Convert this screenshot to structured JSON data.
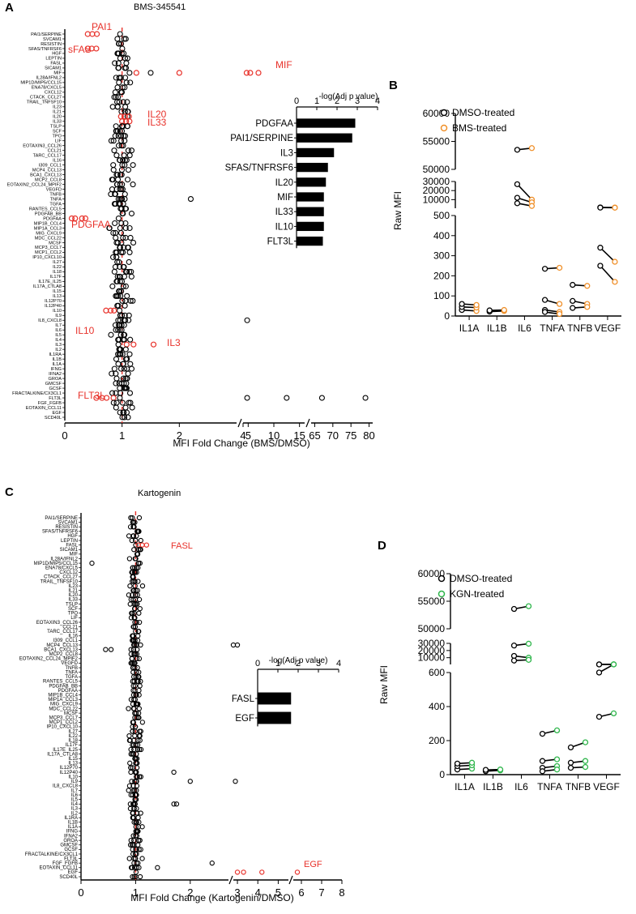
{
  "panel_labels": {
    "a": "A",
    "b": "B",
    "c": "C",
    "d": "D"
  },
  "labels_a": [
    "PAI1/SERPINE",
    "SVCAM1",
    "RESISTIN",
    "SFAS/TNFRSF6",
    "HGF",
    "LEPTIN",
    "FASL",
    "SICAM1",
    "MIF",
    "IL28A/IFNL2",
    "MIP1D/MIP5/CCL15",
    "ENA78/CXCL5",
    "CXCL12",
    "CTACK_CCL27",
    "TRAIL_TNFSF10",
    "IL23",
    "IL21",
    "IL20",
    "IL33",
    "TSLP",
    "SCF",
    "TPO",
    "LIF",
    "EOTAXIN3_CCL26",
    "CCL21",
    "TARC_CCL17",
    "IL16",
    "I309_CCL1",
    "MCP4_CCL13",
    "BCA1_CXCL13",
    "MCP2_CCL8",
    "EOTAXIN2_CCL24_MPIF2",
    "VEGFD",
    "TNFB",
    "TNFA",
    "TGFA",
    "RANTES_CCL5",
    "PDGFAB_BB",
    "PDGFAA",
    "MIP1B_CCL4",
    "MIP1A_CCL3",
    "MIG_CXCL9",
    "MDC_CCL22",
    "MCSF",
    "MCP3_CCL7",
    "MCP1_CCL2",
    "IP10_CXCL10",
    "IL27",
    "IL22",
    "IL18",
    "IL17F",
    "IL17E_IL25",
    "IL17A_CTLA8",
    "IL15",
    "IL13",
    "IL12P70",
    "IL12P40",
    "IL10",
    "IL9",
    "IL8_CXCL8",
    "IL7",
    "IL6",
    "IL5",
    "IL4",
    "IL3",
    "IL2",
    "IL1RA",
    "IL1B",
    "IL1A",
    "IFNG",
    "IFNA2",
    "GROA",
    "GMCSF",
    "GCSF",
    "FRACTALKINE/CX3CL1",
    "FLT3L",
    "FGF_FGFB",
    "EOTAXIN_CCL11",
    "EGF",
    "SCD40L"
  ],
  "labels_c": [
    "PAI1/SERPINE",
    "SVCAM1",
    "RESISTIN",
    "SFAS/TNFRSF6",
    "HGF",
    "LEPTIN",
    "FASL",
    "SICAM1",
    "MIF",
    "IL28A/IFNL2",
    "MIP1D/MIP5/CCL15",
    "ENA78/CXCL5",
    "CXCL12",
    "CTACK_CCL27",
    "TRAIL_TNFSF10",
    "IL23",
    "IL21",
    "IL20",
    "IL33",
    "TSLP",
    "SCF",
    "TPO",
    "LIF",
    "EOTAXIN3_CCL26",
    "CCL21",
    "TARC_CCL17",
    "IL16",
    "I309_CCL1",
    "MCP4_CCL13",
    "BCA1_CXCL13",
    "MCP2_CCL8",
    "EOTAXIN2_CCL24_MPIF2",
    "VEGFD",
    "TNFB",
    "TNFA",
    "TGFA",
    "RANTES_CCL5",
    "PDGFAB_BB",
    "PDGFAA",
    "MIP1B_CCL4",
    "MIP1A_CCL3",
    "MIG_CXCL9",
    "MDC_CCL22",
    "MCSF",
    "MCP3_CCL7",
    "MCP1_CCL2",
    "IP10_CXCL10",
    "IL27",
    "IL22",
    "IL18",
    "IL17F",
    "IL17E_IL25",
    "IL17A_CTLA8",
    "IL15",
    "IL13",
    "IL12P70",
    "IL12P40",
    "IL10",
    "IL9",
    "IL8_CXCL8",
    "IL7",
    "IL6",
    "IL5",
    "IL4",
    "IL3",
    "IL2",
    "IL1RA",
    "IL1B",
    "IL1A",
    "IFNG",
    "IFNA2",
    "GROA",
    "GMCSF",
    "GCSF",
    "FRACTALKINE/CX3CL1",
    "FLT3L",
    "FGF_FGFB",
    "EOTAXIN_CCL11",
    "EGF",
    "SCD40L"
  ],
  "chart_data": [
    {
      "id": "a",
      "type": "scatter",
      "title": "BMS-345541",
      "xlabel": "MFI Fold Change (BMS/DMSO)",
      "xticks": [
        "0",
        "1",
        "2",
        "4",
        "5",
        "10",
        "15",
        "65",
        "70",
        "75",
        "80"
      ],
      "x_segments": [
        [
          0,
          3
        ],
        [
          4,
          16
        ],
        [
          64,
          81
        ]
      ],
      "reference_x": 1,
      "highlight_color": "#e8322b",
      "annotations": [
        "PAI1",
        "sFAS",
        "MIF",
        "IL20",
        "IL33",
        "PDGFAA",
        "IL10",
        "IL3",
        "FLT3L"
      ],
      "highlighted": [
        {
          "label": "PAI1/SERPINE",
          "values": [
            0.4,
            0.48,
            0.56
          ]
        },
        {
          "label": "SFAS/TNFRSF6",
          "values": [
            0.4,
            0.47,
            0.55
          ]
        },
        {
          "label": "MIF",
          "values": [
            1.25,
            2.0,
            4.7,
            5.4,
            7.0
          ]
        },
        {
          "label": "IL20",
          "values": [
            0.98,
            1.05,
            1.12
          ]
        },
        {
          "label": "IL33",
          "values": [
            1.0,
            1.07,
            1.13
          ]
        },
        {
          "label": "PDGFAA",
          "values": [
            0.12,
            0.18,
            0.3,
            0.36
          ]
        },
        {
          "label": "IL10",
          "values": [
            0.72,
            0.8,
            0.86
          ]
        },
        {
          "label": "IL3",
          "values": [
            1.08,
            1.2,
            1.55
          ]
        },
        {
          "label": "FLT3L",
          "values": [
            0.55,
            0.65,
            0.73,
            0.85
          ]
        }
      ],
      "outliers": [
        {
          "label": "MIF",
          "values": [
            1.5
          ]
        },
        {
          "label": "TNFA",
          "values": [
            2.2
          ]
        },
        {
          "label": "IL8_CXCL8",
          "values": [
            4.8
          ]
        },
        {
          "label": "FLT3L",
          "values": [
            4.8,
            12.5,
            67,
            79
          ]
        }
      ],
      "inset": {
        "title": "-log(Adj p value)",
        "xticks": [
          "0",
          "1",
          "2",
          "3",
          "4"
        ],
        "xlim": [
          0,
          4
        ],
        "categories": [
          "PDGFAA",
          "PAI1/SERPINE",
          "IL3",
          "SFAS/TNFRSF6",
          "IL20",
          "MIF",
          "IL33",
          "IL10",
          "FLT3L"
        ],
        "values": [
          2.9,
          2.75,
          1.85,
          1.55,
          1.45,
          1.35,
          1.35,
          1.35,
          1.3
        ]
      }
    },
    {
      "id": "b",
      "type": "line",
      "ylabel": "Raw MFI",
      "categories": [
        "IL1A",
        "IL1B",
        "IL6",
        "TNFA",
        "TNFB",
        "VEGF"
      ],
      "yticks": [
        "0",
        "100",
        "200",
        "300",
        "400",
        "500",
        "10000",
        "20000",
        "30000",
        "50000",
        "55000",
        "60000"
      ],
      "y_segments": [
        [
          0,
          500
        ],
        [
          500,
          30000
        ],
        [
          50000,
          60000
        ]
      ],
      "legend": [
        "DMSO-treated",
        "BMS-treated"
      ],
      "colors": {
        "control": "#000000",
        "treated": "#f0902a"
      },
      "pairs": {
        "IL1A": [
          [
            30,
            25
          ],
          [
            45,
            42
          ],
          [
            60,
            55
          ]
        ],
        "IL1B": [
          [
            22,
            25
          ],
          [
            28,
            30
          ]
        ],
        "IL6": [
          [
            53500,
            53800
          ],
          [
            27000,
            10000
          ],
          [
            12000,
            7000
          ],
          [
            6000,
            3000
          ]
        ],
        "TNFA": [
          [
            235,
            240
          ],
          [
            80,
            60
          ],
          [
            30,
            20
          ],
          [
            20,
            10
          ]
        ],
        "TNFB": [
          [
            155,
            150
          ],
          [
            75,
            60
          ],
          [
            40,
            45
          ]
        ],
        "VEGF": [
          [
            1400,
            1300
          ],
          [
            1200,
            1100
          ],
          [
            340,
            270
          ],
          [
            250,
            170
          ]
        ]
      }
    },
    {
      "id": "c",
      "type": "scatter",
      "title": "Kartogenin",
      "xlabel": "MFI Fold Change (Kartogenin/DMSO)",
      "xticks": [
        "0",
        "1",
        "2",
        "3",
        "4",
        "5",
        "6",
        "7",
        "8"
      ],
      "x_segments": [
        [
          0,
          2.7
        ],
        [
          2.8,
          5.5
        ],
        [
          5.6,
          8
        ]
      ],
      "reference_x": 1,
      "highlight_color": "#e8322b",
      "annotations": [
        "FASL",
        "EGF"
      ],
      "highlighted": [
        {
          "label": "FASL",
          "values": [
            1.05,
            1.12,
            1.2
          ]
        },
        {
          "label": "EGF",
          "values": [
            3.0,
            3.3,
            4.2,
            5.8
          ]
        }
      ],
      "outliers": [
        {
          "label": "MIP1D/MIP5/CCL15",
          "values": [
            0.2
          ]
        },
        {
          "label": "BCA1_CXCL13",
          "values": [
            0.45,
            0.55
          ]
        },
        {
          "label": "MCP4_CCL13",
          "values": [
            2.8,
            3.0
          ]
        },
        {
          "label": "IL12P40",
          "values": [
            1.7
          ]
        },
        {
          "label": "IL9",
          "values": [
            2.0,
            2.9
          ]
        },
        {
          "label": "IL4",
          "values": [
            1.7,
            1.75
          ]
        },
        {
          "label": "FGF_FGFB",
          "values": [
            2.4
          ]
        },
        {
          "label": "EOTAXIN_CCL11",
          "values": [
            1.4
          ]
        }
      ],
      "inset": {
        "title": "-log(Adj p value)",
        "xticks": [
          "0",
          "1",
          "2",
          "3",
          "4"
        ],
        "xlim": [
          0,
          4
        ],
        "categories": [
          "FASL",
          "EGF"
        ],
        "values": [
          1.65,
          1.65
        ]
      }
    },
    {
      "id": "d",
      "type": "line",
      "ylabel": "Raw MFI",
      "categories": [
        "IL1A",
        "IL1B",
        "IL6",
        "TNFA",
        "TNFB",
        "VEGF"
      ],
      "yticks": [
        "0",
        "200",
        "400",
        "600",
        "10000",
        "20000",
        "30000",
        "50000",
        "55000",
        "60000"
      ],
      "y_segments": [
        [
          0,
          600
        ],
        [
          600,
          30000
        ],
        [
          50000,
          60000
        ]
      ],
      "legend": [
        "DMSO-treated",
        "KGN-treated"
      ],
      "colors": {
        "control": "#000000",
        "treated": "#2db54a"
      },
      "pairs": {
        "IL1A": [
          [
            30,
            35
          ],
          [
            50,
            55
          ],
          [
            65,
            70
          ]
        ],
        "IL1B": [
          [
            20,
            25
          ],
          [
            28,
            30
          ]
        ],
        "IL6": [
          [
            53600,
            54100
          ],
          [
            27000,
            29500
          ],
          [
            12500,
            10000
          ],
          [
            6000,
            7000
          ]
        ],
        "TNFA": [
          [
            240,
            260
          ],
          [
            80,
            90
          ],
          [
            40,
            50
          ],
          [
            20,
            30
          ]
        ],
        "TNFB": [
          [
            160,
            190
          ],
          [
            70,
            80
          ],
          [
            40,
            45
          ]
        ],
        "VEGF": [
          [
            600,
            650
          ],
          [
            660,
            700
          ],
          [
            620,
            680
          ],
          [
            340,
            360
          ]
        ]
      }
    }
  ]
}
